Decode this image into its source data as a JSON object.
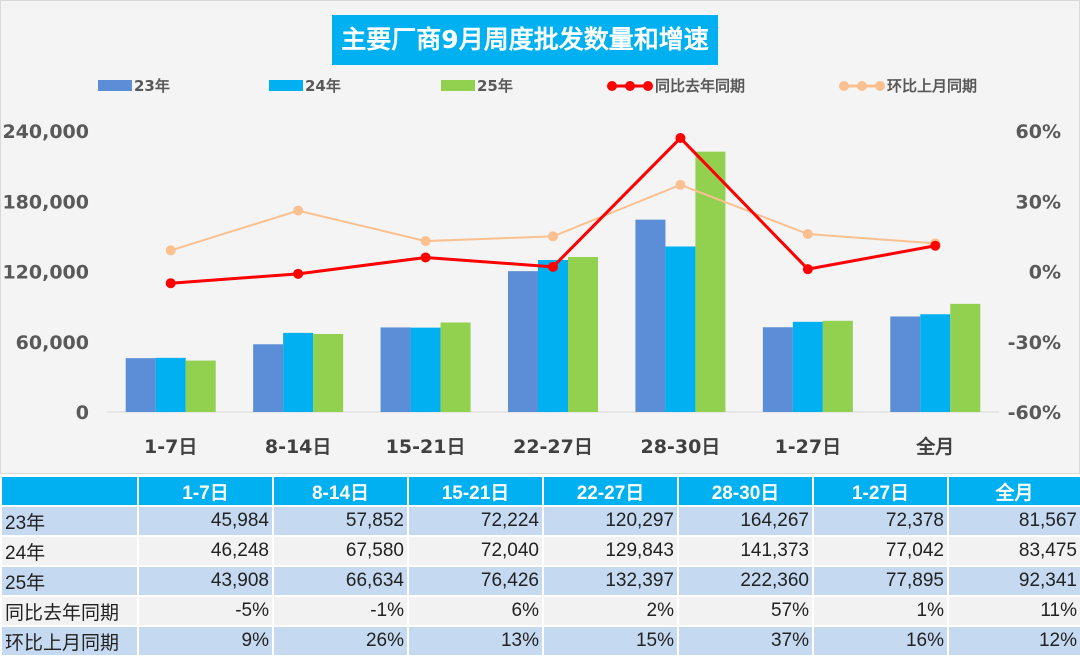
{
  "chart_data": {
    "type": "bar+line",
    "title": "主要厂商9月周度批发数量和增速",
    "categories": [
      "1-7日",
      "8-14日",
      "15-21日",
      "22-27日",
      "28-30日",
      "1-27日",
      "全月"
    ],
    "series": [
      {
        "name": "23年",
        "type": "bar",
        "axis": "left",
        "color": "#5b8ed6",
        "values": [
          45984,
          57852,
          72224,
          120297,
          164267,
          72378,
          81567
        ]
      },
      {
        "name": "24年",
        "type": "bar",
        "axis": "left",
        "color": "#00b0f0",
        "values": [
          46248,
          67580,
          72040,
          129843,
          141373,
          77042,
          83475
        ]
      },
      {
        "name": "25年",
        "type": "bar",
        "axis": "left",
        "color": "#92d050",
        "values": [
          43908,
          66634,
          76426,
          132397,
          222360,
          77895,
          92341
        ]
      },
      {
        "name": "同比去年同期",
        "type": "line",
        "axis": "right",
        "color": "#ff0000",
        "values": [
          -5,
          -1,
          6,
          2,
          57,
          1,
          11
        ]
      },
      {
        "name": "环比上月同期",
        "type": "line",
        "axis": "right",
        "color": "#fac090",
        "values": [
          9,
          26,
          13,
          15,
          37,
          16,
          12
        ]
      }
    ],
    "left_axis": {
      "ylim": [
        0,
        240000
      ],
      "ticks": [
        "0",
        "60,000",
        "120,000",
        "180,000",
        "240,000"
      ]
    },
    "right_axis": {
      "ylim": [
        -60,
        60
      ],
      "ticks": [
        "-60%",
        "-30%",
        "0%",
        "30%",
        "60%"
      ]
    },
    "legend": "top",
    "grid": false
  },
  "table": {
    "header": [
      "",
      "1-7日",
      "8-14日",
      "15-21日",
      "22-27日",
      "28-30日",
      "1-27日",
      "全月"
    ],
    "rows": [
      [
        "23年",
        "45,984",
        "57,852",
        "72,224",
        "120,297",
        "164,267",
        "72,378",
        "81,567"
      ],
      [
        "24年",
        "46,248",
        "67,580",
        "72,040",
        "129,843",
        "141,373",
        "77,042",
        "83,475"
      ],
      [
        "25年",
        "43,908",
        "66,634",
        "76,426",
        "132,397",
        "222,360",
        "77,895",
        "92,341"
      ],
      [
        "同比去年同期",
        "-5%",
        "-1%",
        "6%",
        "2%",
        "57%",
        "1%",
        "11%"
      ],
      [
        "环比上月同期",
        "9%",
        "26%",
        "13%",
        "15%",
        "37%",
        "16%",
        "12%"
      ]
    ]
  }
}
